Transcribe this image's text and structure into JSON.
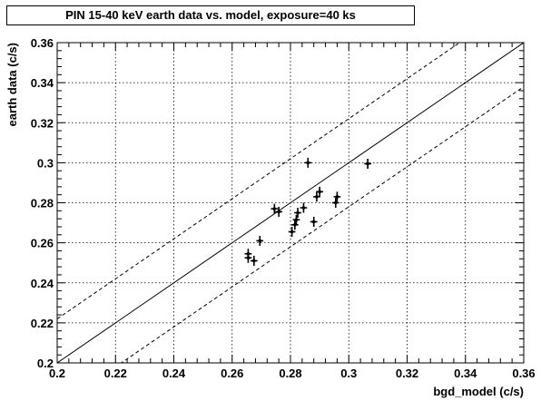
{
  "chart_data": {
    "type": "scatter",
    "title": "PIN 15-40 keV earth data vs. model, exposure=40 ks",
    "xlabel": "bgd_model (c/s)",
    "ylabel": "earth data (c/s)",
    "xlim": [
      0.2,
      0.36
    ],
    "ylim": [
      0.2,
      0.36
    ],
    "xticks": [
      "0.2",
      "0.22",
      "0.24",
      "0.26",
      "0.28",
      "0.3",
      "0.32",
      "0.34",
      "0.36"
    ],
    "yticks": [
      "0.2",
      "0.22",
      "0.24",
      "0.26",
      "0.28",
      "0.3",
      "0.32",
      "0.34",
      "0.36"
    ],
    "grid": true,
    "reference_lines": [
      {
        "style": "solid",
        "slope": 1,
        "offset": 0
      },
      {
        "style": "dashed",
        "slope": 1,
        "offset": 0.022
      },
      {
        "style": "dashed",
        "slope": 1,
        "offset": -0.022
      }
    ],
    "points": [
      {
        "x": 0.2655,
        "y": 0.2545,
        "xerr": 0.0012,
        "yerr": 0.0025
      },
      {
        "x": 0.2655,
        "y": 0.2525,
        "xerr": 0.0012,
        "yerr": 0.0025
      },
      {
        "x": 0.2675,
        "y": 0.251,
        "xerr": 0.0012,
        "yerr": 0.0025
      },
      {
        "x": 0.2695,
        "y": 0.261,
        "xerr": 0.0012,
        "yerr": 0.0025
      },
      {
        "x": 0.2745,
        "y": 0.277,
        "xerr": 0.0012,
        "yerr": 0.0025
      },
      {
        "x": 0.276,
        "y": 0.2755,
        "xerr": 0.0012,
        "yerr": 0.0025
      },
      {
        "x": 0.2805,
        "y": 0.2655,
        "xerr": 0.0012,
        "yerr": 0.0025
      },
      {
        "x": 0.2815,
        "y": 0.269,
        "xerr": 0.0012,
        "yerr": 0.0025
      },
      {
        "x": 0.282,
        "y": 0.2715,
        "xerr": 0.0012,
        "yerr": 0.0025
      },
      {
        "x": 0.2825,
        "y": 0.275,
        "xerr": 0.0012,
        "yerr": 0.0025
      },
      {
        "x": 0.2845,
        "y": 0.2775,
        "xerr": 0.0012,
        "yerr": 0.0025
      },
      {
        "x": 0.286,
        "y": 0.3,
        "xerr": 0.0012,
        "yerr": 0.0025
      },
      {
        "x": 0.288,
        "y": 0.2705,
        "xerr": 0.0012,
        "yerr": 0.0025
      },
      {
        "x": 0.289,
        "y": 0.283,
        "xerr": 0.0012,
        "yerr": 0.0025
      },
      {
        "x": 0.29,
        "y": 0.2855,
        "xerr": 0.0012,
        "yerr": 0.0025
      },
      {
        "x": 0.2955,
        "y": 0.28,
        "xerr": 0.0012,
        "yerr": 0.0025
      },
      {
        "x": 0.296,
        "y": 0.283,
        "xerr": 0.0012,
        "yerr": 0.0025
      },
      {
        "x": 0.3065,
        "y": 0.2995,
        "xerr": 0.0012,
        "yerr": 0.0025
      }
    ]
  }
}
